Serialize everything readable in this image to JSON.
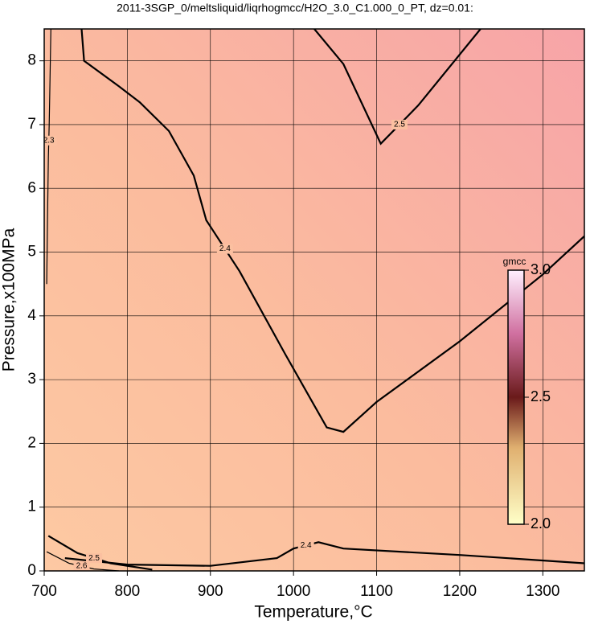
{
  "chart_data": {
    "type": "contour",
    "title": "2011-3SGP_0/meltsliquid/liqrhogmcc/H2O_3.0_C1.000_0_PT, dz=0.01:",
    "x_label": "Temperature,°C",
    "y_label": "Pressure,x100MPa",
    "xlim": [
      700,
      1350
    ],
    "ylim": [
      0,
      8.5
    ],
    "xticks": [
      700,
      800,
      900,
      1000,
      1100,
      1200,
      1300
    ],
    "yticks": [
      0,
      1,
      2,
      3,
      4,
      5,
      6,
      7,
      8
    ],
    "grid": true,
    "contours": [
      {
        "level": 2.3,
        "x": [
          708,
          707,
          706,
          705,
          704,
          703
        ],
        "y": [
          8.5,
          7.7,
          7.0,
          6.5,
          5.5,
          4.5
        ]
      },
      {
        "level": 2.4,
        "x": [
          745,
          748,
          790,
          815,
          850,
          880,
          895,
          900,
          935,
          990,
          1040,
          1060,
          1100,
          1200,
          1300,
          1350
        ],
        "y": [
          8.5,
          8.0,
          7.6,
          7.35,
          6.9,
          6.2,
          5.5,
          5.4,
          4.7,
          3.4,
          2.25,
          2.18,
          2.65,
          3.6,
          4.65,
          5.25
        ]
      },
      {
        "level": 2.5,
        "x": [
          1025,
          1060,
          1105,
          1150,
          1225
        ],
        "y": [
          8.5,
          7.95,
          6.7,
          7.3,
          8.5
        ]
      },
      {
        "level": 2.4,
        "x": [
          725,
          800,
          900,
          980,
          1000,
          1030,
          1060,
          1200,
          1350
        ],
        "y": [
          0.2,
          0.1,
          0.08,
          0.2,
          0.35,
          0.45,
          0.35,
          0.25,
          0.12
        ]
      },
      {
        "level": 2.5,
        "x": [
          705,
          740,
          780,
          830
        ],
        "y": [
          0.55,
          0.28,
          0.12,
          0.02
        ]
      },
      {
        "level": 2.6,
        "x": [
          703,
          730,
          760,
          790
        ],
        "y": [
          0.3,
          0.12,
          0.03,
          0.0
        ]
      }
    ],
    "colorbar": {
      "label": "gmcc",
      "lim": [
        2.0,
        3.0
      ],
      "ticks": [
        {
          "value": 2.0,
          "label": "2.0"
        },
        {
          "value": 2.5,
          "label": "2.5"
        },
        {
          "value": 3.0,
          "label": "3.0"
        }
      ]
    }
  }
}
